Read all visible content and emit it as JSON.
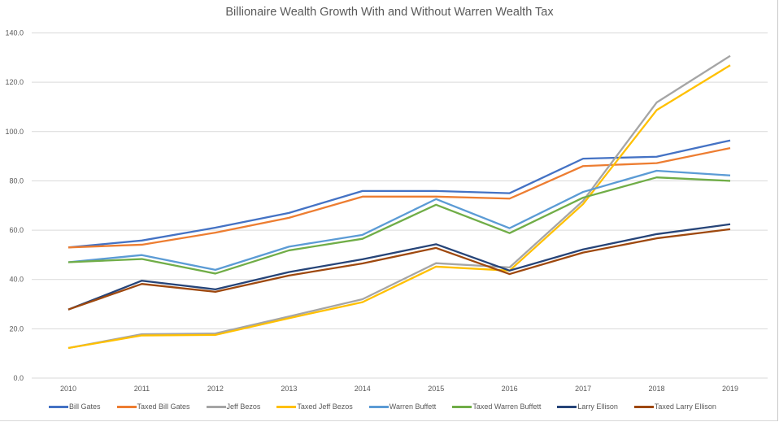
{
  "chart_data": {
    "type": "line",
    "title": "Billionaire Wealth Growth With and Without Warren Wealth Tax",
    "xlabel": "",
    "ylabel": "",
    "categories": [
      "2010",
      "2011",
      "2012",
      "2013",
      "2014",
      "2015",
      "2016",
      "2017",
      "2018",
      "2019"
    ],
    "ylim": [
      0,
      140
    ],
    "yticks": [
      "0.0",
      "20.0",
      "40.0",
      "60.0",
      "80.0",
      "100.0",
      "120.0",
      "140.0"
    ],
    "grid": true,
    "legend_position": "bottom",
    "series": [
      {
        "name": "Bill Gates",
        "color": "#4472C4",
        "values": [
          53,
          55.8,
          61,
          67,
          75.9,
          75.9,
          75,
          89,
          89.8,
          96.4
        ]
      },
      {
        "name": "Taxed Bill Gates",
        "color": "#ED7D31",
        "values": [
          53,
          54.1,
          59,
          65,
          73.6,
          73.6,
          72.8,
          86,
          87.2,
          93.3
        ]
      },
      {
        "name": "Jeff Bezos",
        "color": "#A5A5A5",
        "values": [
          12.2,
          17.8,
          18.1,
          25,
          32,
          46.6,
          44.9,
          71.9,
          111.8,
          130.7
        ]
      },
      {
        "name": "Taxed Jeff Bezos",
        "color": "#FFC000",
        "values": [
          12.2,
          17.3,
          17.5,
          24.3,
          30.8,
          45.2,
          43.6,
          70.6,
          108.7,
          126.9
        ]
      },
      {
        "name": "Warren Buffett",
        "color": "#5B9BD5",
        "values": [
          47,
          49.9,
          43.9,
          53.3,
          58.1,
          72.6,
          60.8,
          75.5,
          84.1,
          82.2
        ]
      },
      {
        "name": "Taxed Warren Buffett",
        "color": "#70AD47",
        "values": [
          47,
          48.3,
          42.4,
          51.8,
          56.5,
          70.3,
          58.8,
          73.2,
          81.4,
          80
        ]
      },
      {
        "name": "Larry Ellison",
        "color": "#264478",
        "values": [
          27.8,
          39.5,
          36,
          43,
          48.2,
          54.3,
          43.6,
          52.2,
          58.4,
          62.4
        ]
      },
      {
        "name": "Taxed Larry Ellison",
        "color": "#9E480E",
        "values": [
          27.8,
          38.2,
          35,
          41.6,
          46.5,
          52.8,
          42.2,
          50.9,
          56.7,
          60.4
        ]
      }
    ]
  }
}
